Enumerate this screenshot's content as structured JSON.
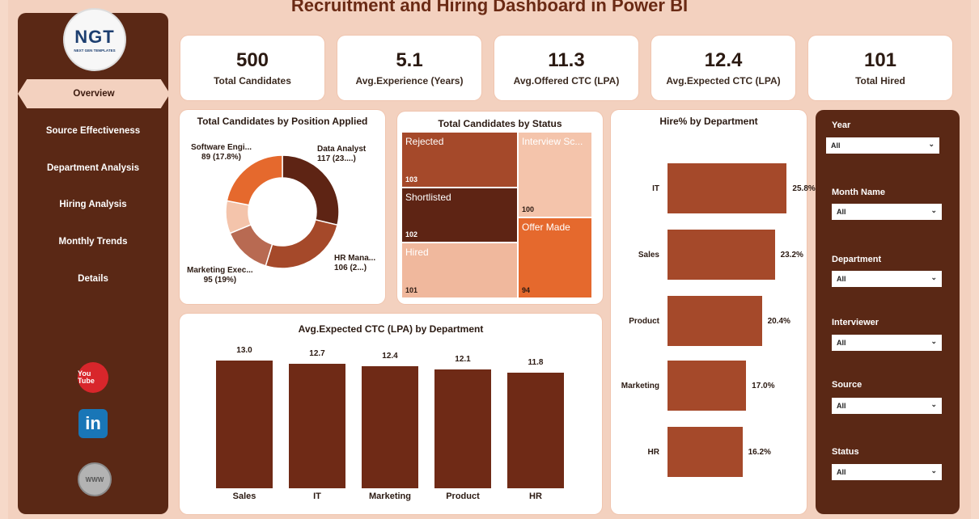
{
  "title": "Recruitment and Hiring Dashboard in Power BI",
  "logo": {
    "text": "NGT",
    "sub": "NEXT GEN TEMPLATES"
  },
  "nav": [
    {
      "label": "Overview",
      "active": true
    },
    {
      "label": "Source Effectiveness"
    },
    {
      "label": "Department Analysis"
    },
    {
      "label": "Hiring Analysis"
    },
    {
      "label": "Monthly Trends"
    },
    {
      "label": "Details"
    }
  ],
  "social": {
    "youtube": "You Tube",
    "linkedin": "in",
    "web": "WWW"
  },
  "kpis": [
    {
      "value": "500",
      "label": "Total Candidates"
    },
    {
      "value": "5.1",
      "label": "Avg.Experience (Years)"
    },
    {
      "value": "11.3",
      "label": "Avg.Offered CTC (LPA)"
    },
    {
      "value": "12.4",
      "label": "Avg.Expected CTC (LPA)"
    },
    {
      "value": "101",
      "label": "Total Hired"
    }
  ],
  "chart_data": [
    {
      "type": "pie",
      "title": "Total Candidates by Position Applied",
      "categories": [
        "Data Analyst",
        "HR Manager",
        "Marketing Executive",
        "Software Engineer"
      ],
      "values": [
        117,
        106,
        95,
        89
      ],
      "label_lines": [
        [
          "Data Analyst",
          "117 (23....)"
        ],
        [
          "HR Mana...",
          "106 (2...)"
        ],
        [
          "Marketing Exec...",
          "95 (19%)"
        ],
        [
          "Software Engi...",
          "89 (17.8%)"
        ]
      ]
    },
    {
      "type": "heatmap",
      "title": "Total Candidates by Status",
      "categories": [
        "Rejected",
        "Shortlisted",
        "Hired",
        "Interview Scheduled",
        "Offer Made"
      ],
      "display_labels": [
        "Rejected",
        "Shortlisted",
        "Hired",
        "Interview Sc...",
        "Offer Made"
      ],
      "values": [
        103,
        102,
        101,
        100,
        94
      ]
    },
    {
      "type": "bar",
      "title": "Hire% by Department",
      "categories": [
        "IT",
        "Sales",
        "Product",
        "Marketing",
        "HR"
      ],
      "values": [
        25.8,
        23.2,
        20.4,
        17.0,
        16.2
      ],
      "value_labels": [
        "25.8%",
        "23.2%",
        "20.4%",
        "17.0%",
        "16.2%"
      ],
      "orientation": "horizontal"
    },
    {
      "type": "bar",
      "title": "Avg.Expected CTC (LPA) by Department",
      "categories": [
        "Sales",
        "IT",
        "Marketing",
        "Product",
        "HR"
      ],
      "values": [
        13.0,
        12.7,
        12.4,
        12.1,
        11.8
      ],
      "value_labels": [
        "13.0",
        "12.7",
        "12.4",
        "12.1",
        "11.8"
      ]
    }
  ],
  "colors": {
    "dark": "#5a2815",
    "mid": "#a5492a",
    "orange": "#e5692d",
    "light": "#f0b89d",
    "lighter": "#f4c4ab"
  },
  "filters": [
    {
      "label": "Year",
      "value": "All"
    },
    {
      "label": "Month Name",
      "value": "All"
    },
    {
      "label": "Department",
      "value": "All"
    },
    {
      "label": "Interviewer",
      "value": "All"
    },
    {
      "label": "Source",
      "value": "All"
    },
    {
      "label": "Status",
      "value": "All"
    }
  ]
}
